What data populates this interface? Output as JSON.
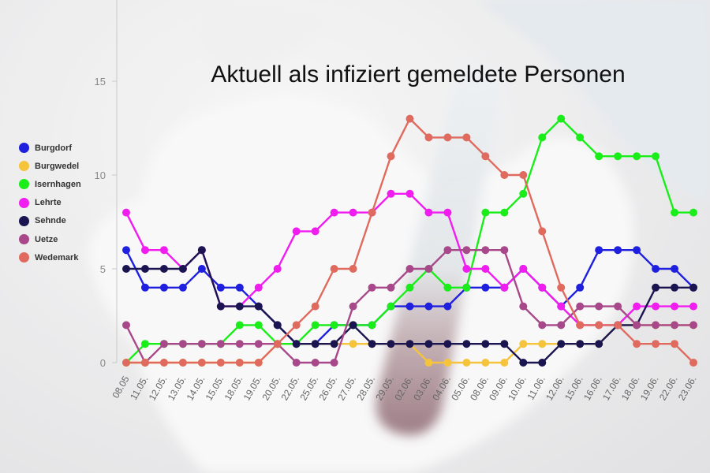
{
  "chart_data": {
    "type": "line",
    "title": "Aktuell als infiziert gemeldete Personen",
    "xlabel": "",
    "ylabel": "",
    "ylim": [
      0,
      15
    ],
    "yticks": [
      0,
      5,
      10,
      15
    ],
    "legend_position": "left",
    "grid": false,
    "x": [
      "08.05",
      "11.05.",
      "12.05.",
      "13.05.",
      "14.05.",
      "15.05.",
      "18.05.",
      "19.05.",
      "20.05.",
      "22.05.",
      "25.05.",
      "26.05.",
      "27.05.",
      "28.05.",
      "29.05.",
      "02.06.",
      "03.06.",
      "04.06.",
      "05.06.",
      "08.06.",
      "09.06.",
      "10.06.",
      "11.06.",
      "12.06.",
      "15.06.",
      "16.06.",
      "17.06.",
      "18.06.",
      "19.06.",
      "22.06.",
      "23.06."
    ],
    "series": [
      {
        "name": "Burgdorf",
        "color": "#1f1fe0",
        "values": [
          6,
          4,
          4,
          4,
          5,
          4,
          4,
          3,
          2,
          1,
          1,
          2,
          2,
          2,
          3,
          3,
          3,
          3,
          4,
          4,
          4,
          5,
          4,
          3,
          4,
          6,
          6,
          6,
          5,
          5,
          4
        ]
      },
      {
        "name": "Burgwedel",
        "color": "#f5c43a",
        "values": [
          0,
          0,
          0,
          0,
          0,
          0,
          0,
          0,
          1,
          1,
          1,
          1,
          1,
          1,
          1,
          1,
          0,
          0,
          0,
          0,
          0,
          1,
          1,
          1,
          1,
          1,
          2,
          2,
          2,
          2,
          2
        ]
      },
      {
        "name": "Isernhagen",
        "color": "#19ee19",
        "values": [
          0,
          1,
          1,
          1,
          1,
          1,
          2,
          2,
          1,
          1,
          2,
          2,
          2,
          2,
          3,
          4,
          5,
          4,
          4,
          8,
          8,
          9,
          12,
          13,
          12,
          11,
          11,
          11,
          11,
          8,
          8
        ]
      },
      {
        "name": "Lehrte",
        "color": "#f01cf0",
        "values": [
          8,
          6,
          6,
          5,
          6,
          3,
          3,
          4,
          5,
          7,
          7,
          8,
          8,
          8,
          9,
          9,
          8,
          8,
          5,
          5,
          4,
          5,
          4,
          3,
          2,
          2,
          2,
          3,
          3,
          3,
          3
        ]
      },
      {
        "name": "Sehnde",
        "color": "#1a1450",
        "values": [
          5,
          5,
          5,
          5,
          6,
          3,
          3,
          3,
          2,
          1,
          1,
          1,
          2,
          1,
          1,
          1,
          1,
          1,
          1,
          1,
          1,
          0,
          0,
          1,
          1,
          1,
          2,
          2,
          4,
          4,
          4
        ]
      },
      {
        "name": "Uetze",
        "color": "#a8488a",
        "values": [
          2,
          0,
          1,
          1,
          1,
          1,
          1,
          1,
          1,
          0,
          0,
          0,
          3,
          4,
          4,
          5,
          5,
          6,
          6,
          6,
          6,
          3,
          2,
          2,
          3,
          3,
          3,
          2,
          2,
          2,
          2
        ]
      },
      {
        "name": "Wedemark",
        "color": "#e06a5e",
        "values": [
          0,
          0,
          0,
          0,
          0,
          0,
          0,
          0,
          1,
          2,
          3,
          5,
          5,
          8,
          11,
          13,
          12,
          12,
          12,
          11,
          10,
          10,
          7,
          4,
          2,
          2,
          2,
          1,
          1,
          1,
          0
        ]
      }
    ]
  }
}
